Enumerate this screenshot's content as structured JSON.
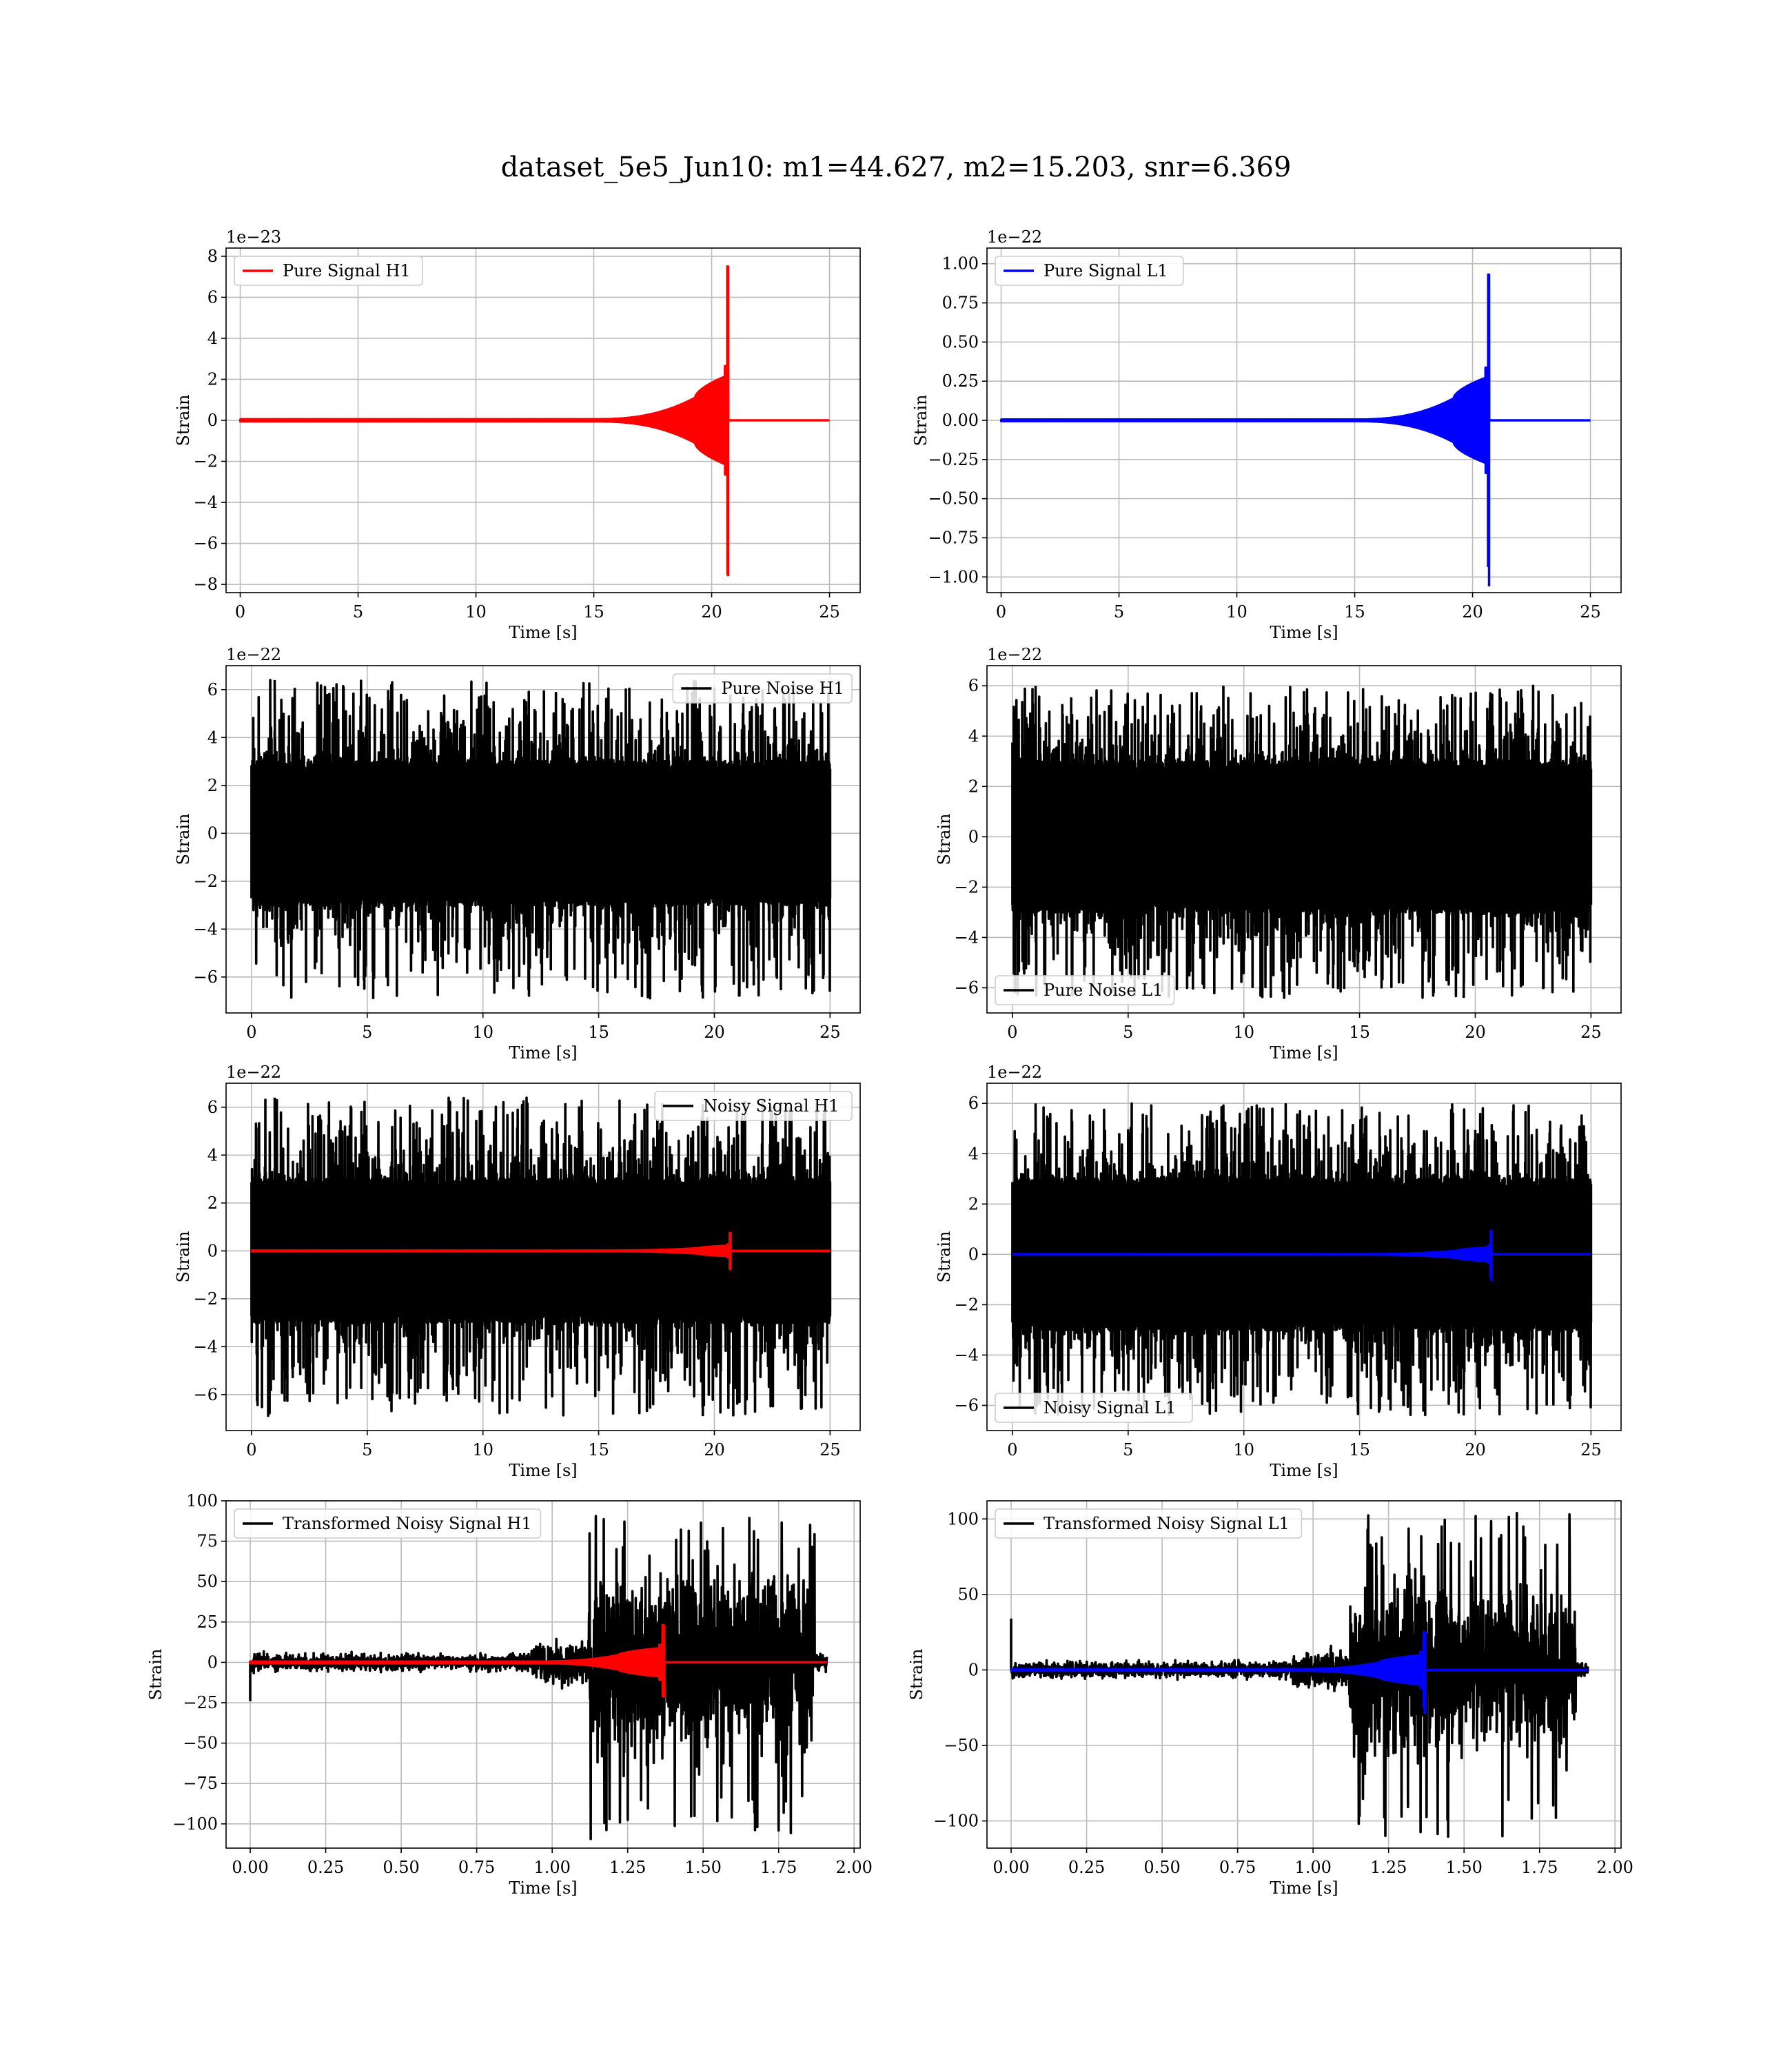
{
  "figure": {
    "title": "dataset_5e5_Jun10: m1=44.627, m2=15.203, snr=6.369"
  },
  "chart_data": [
    {
      "id": "pure-signal-h1",
      "type": "line",
      "xlabel": "Time [s]",
      "ylabel": "Strain",
      "offset_text": "1e−23",
      "xlim": [
        -0.6,
        26.3
      ],
      "ylim": [
        -8.4,
        8.4
      ],
      "x_ticks": [
        0,
        5,
        10,
        15,
        20,
        25
      ],
      "x_tick_labels": [
        "0",
        "5",
        "10",
        "15",
        "20",
        "25"
      ],
      "y_ticks": [
        -8,
        -6,
        -4,
        -2,
        0,
        2,
        4,
        6,
        8
      ],
      "y_tick_labels": [
        "−8",
        "−6",
        "−4",
        "−2",
        "0",
        "2",
        "4",
        "6",
        "8"
      ],
      "grid": true,
      "legend": "top-left",
      "series": [
        {
          "name": "Pure Signal H1",
          "color": "#ff0000",
          "kind": "chirp",
          "x_start": 0,
          "x_end": 25,
          "peak_x": 20.7,
          "peak_pos": 7.5,
          "peak_neg": -7.6,
          "onset_x": 15,
          "burst_x": 19.3,
          "burst_amp": 2.2,
          "base_amp": 0.05
        }
      ]
    },
    {
      "id": "pure-signal-l1",
      "type": "line",
      "xlabel": "Time [s]",
      "ylabel": "Strain",
      "offset_text": "1e−22",
      "xlim": [
        -0.6,
        26.3
      ],
      "ylim": [
        -1.1,
        1.1
      ],
      "x_ticks": [
        0,
        5,
        10,
        15,
        20,
        25
      ],
      "x_tick_labels": [
        "0",
        "5",
        "10",
        "15",
        "20",
        "25"
      ],
      "y_ticks": [
        -1.0,
        -0.75,
        -0.5,
        -0.25,
        0,
        0.25,
        0.5,
        0.75,
        1.0
      ],
      "y_tick_labels": [
        "−1.00",
        "−0.75",
        "−0.50",
        "−0.25",
        "0.00",
        "0.25",
        "0.50",
        "0.75",
        "1.00"
      ],
      "grid": true,
      "legend": "top-left",
      "series": [
        {
          "name": "Pure Signal L1",
          "color": "#0000ff",
          "kind": "chirp",
          "x_start": 0,
          "x_end": 25,
          "peak_x": 20.7,
          "peak_pos": 0.93,
          "peak_neg": -1.06,
          "onset_x": 15,
          "burst_x": 19.2,
          "burst_amp": 0.28,
          "base_amp": 0.005
        }
      ]
    },
    {
      "id": "pure-noise-h1",
      "type": "line",
      "xlabel": "Time [s]",
      "ylabel": "Strain",
      "offset_text": "1e−22",
      "xlim": [
        -1.1,
        26.3
      ],
      "ylim": [
        -7.5,
        7.0
      ],
      "x_ticks": [
        0,
        5,
        10,
        15,
        20,
        25
      ],
      "x_tick_labels": [
        "0",
        "5",
        "10",
        "15",
        "20",
        "25"
      ],
      "y_ticks": [
        -6,
        -4,
        -2,
        0,
        2,
        4,
        6
      ],
      "y_tick_labels": [
        "−6",
        "−4",
        "−2",
        "0",
        "2",
        "4",
        "6"
      ],
      "grid": true,
      "legend": "top-right",
      "series": [
        {
          "name": "Pure Noise H1",
          "color": "#000000",
          "kind": "noise",
          "x_start": 0,
          "x_end": 25,
          "band": 3.0,
          "max_pos": 6.4,
          "max_neg": -6.9
        }
      ]
    },
    {
      "id": "pure-noise-l1",
      "type": "line",
      "xlabel": "Time [s]",
      "ylabel": "Strain",
      "offset_text": "1e−22",
      "xlim": [
        -1.1,
        26.3
      ],
      "ylim": [
        -7.0,
        6.8
      ],
      "x_ticks": [
        0,
        5,
        10,
        15,
        20,
        25
      ],
      "x_tick_labels": [
        "0",
        "5",
        "10",
        "15",
        "20",
        "25"
      ],
      "y_ticks": [
        -6,
        -4,
        -2,
        0,
        2,
        4,
        6
      ],
      "y_tick_labels": [
        "−6",
        "−4",
        "−2",
        "0",
        "2",
        "4",
        "6"
      ],
      "grid": true,
      "legend": "bottom-left",
      "series": [
        {
          "name": "Pure Noise L1",
          "color": "#000000",
          "kind": "noise",
          "x_start": 0,
          "x_end": 25,
          "band": 3.0,
          "max_pos": 6.0,
          "max_neg": -6.4
        }
      ]
    },
    {
      "id": "noisy-signal-h1",
      "type": "line",
      "xlabel": "Time [s]",
      "ylabel": "Strain",
      "offset_text": "1e−22",
      "xlim": [
        -1.1,
        26.3
      ],
      "ylim": [
        -7.5,
        7.0
      ],
      "x_ticks": [
        0,
        5,
        10,
        15,
        20,
        25
      ],
      "x_tick_labels": [
        "0",
        "5",
        "10",
        "15",
        "20",
        "25"
      ],
      "y_ticks": [
        -6,
        -4,
        -2,
        0,
        2,
        4,
        6
      ],
      "y_tick_labels": [
        "−6",
        "−4",
        "−2",
        "0",
        "2",
        "4",
        "6"
      ],
      "grid": true,
      "legend": "top-right",
      "series": [
        {
          "name": "Noisy Signal H1",
          "color": "#000000",
          "kind": "noise",
          "x_start": 0,
          "x_end": 25,
          "band": 3.0,
          "max_pos": 6.4,
          "max_neg": -6.9
        },
        {
          "color": "#ff0000",
          "kind": "chirp",
          "x_start": 0,
          "x_end": 25,
          "peak_x": 20.7,
          "peak_pos": 0.75,
          "peak_neg": -0.76,
          "onset_x": 15,
          "burst_x": 19.3,
          "burst_amp": 0.22,
          "base_amp": 0.01
        }
      ]
    },
    {
      "id": "noisy-signal-l1",
      "type": "line",
      "xlabel": "Time [s]",
      "ylabel": "Strain",
      "offset_text": "1e−22",
      "xlim": [
        -1.1,
        26.3
      ],
      "ylim": [
        -7.0,
        6.8
      ],
      "x_ticks": [
        0,
        5,
        10,
        15,
        20,
        25
      ],
      "x_tick_labels": [
        "0",
        "5",
        "10",
        "15",
        "20",
        "25"
      ],
      "y_ticks": [
        -6,
        -4,
        -2,
        0,
        2,
        4,
        6
      ],
      "y_tick_labels": [
        "−6",
        "−4",
        "−2",
        "0",
        "2",
        "4",
        "6"
      ],
      "grid": true,
      "legend": "bottom-left",
      "series": [
        {
          "name": "Noisy Signal L1",
          "color": "#000000",
          "kind": "noise",
          "x_start": 0,
          "x_end": 25,
          "band": 3.0,
          "max_pos": 6.0,
          "max_neg": -6.4
        },
        {
          "color": "#0000ff",
          "kind": "chirp",
          "x_start": 0,
          "x_end": 25,
          "peak_x": 20.7,
          "peak_pos": 0.93,
          "peak_neg": -1.06,
          "onset_x": 15,
          "burst_x": 19.2,
          "burst_amp": 0.28,
          "base_amp": 0.005
        }
      ]
    },
    {
      "id": "transformed-noisy-signal-h1",
      "type": "line",
      "xlabel": "Time [s]",
      "ylabel": "Strain",
      "offset_text": "",
      "xlim": [
        -0.08,
        2.02
      ],
      "ylim": [
        -115,
        100
      ],
      "x_ticks": [
        0,
        0.25,
        0.5,
        0.75,
        1.0,
        1.25,
        1.5,
        1.75,
        2.0
      ],
      "x_tick_labels": [
        "0.00",
        "0.25",
        "0.50",
        "0.75",
        "1.00",
        "1.25",
        "1.50",
        "1.75",
        "2.00"
      ],
      "y_ticks": [
        -100,
        -75,
        -50,
        -25,
        0,
        25,
        50,
        75,
        100
      ],
      "y_tick_labels": [
        "−100",
        "−75",
        "−50",
        "−25",
        "0",
        "25",
        "50",
        "75",
        "100"
      ],
      "grid": true,
      "legend": "top-left",
      "series": [
        {
          "name": "Transformed Noisy Signal H1",
          "color": "#000000",
          "kind": "whitened",
          "x_start": 0,
          "x_end": 1.91,
          "low_band": 5,
          "mid_x": 0.93,
          "mid_band": 12,
          "high_x": 1.12,
          "high_band": 55,
          "high_end": 1.87,
          "max_pos": 92,
          "max_neg": -110,
          "start_spike": -24
        },
        {
          "color": "#ff0000",
          "kind": "chirp",
          "x_start": 0,
          "x_end": 1.91,
          "peak_x": 1.37,
          "peak_pos": 23,
          "peak_neg": -21,
          "onset_x": 0.95,
          "burst_x": 1.22,
          "burst_amp": 9,
          "base_amp": 0.5
        }
      ]
    },
    {
      "id": "transformed-noisy-signal-l1",
      "type": "line",
      "xlabel": "Time [s]",
      "ylabel": "Strain",
      "offset_text": "",
      "xlim": [
        -0.08,
        2.02
      ],
      "ylim": [
        -118,
        112
      ],
      "x_ticks": [
        0,
        0.25,
        0.5,
        0.75,
        1.0,
        1.25,
        1.5,
        1.75,
        2.0
      ],
      "x_tick_labels": [
        "0.00",
        "0.25",
        "0.50",
        "0.75",
        "1.00",
        "1.25",
        "1.50",
        "1.75",
        "2.00"
      ],
      "y_ticks": [
        -100,
        -50,
        0,
        50,
        100
      ],
      "y_tick_labels": [
        "−100",
        "−50",
        "0",
        "50",
        "100"
      ],
      "grid": true,
      "legend": "top-left",
      "series": [
        {
          "name": "Transformed Noisy Signal L1",
          "color": "#000000",
          "kind": "whitened",
          "x_start": 0,
          "x_end": 1.91,
          "low_band": 5,
          "mid_x": 0.93,
          "mid_band": 12,
          "high_x": 1.12,
          "high_band": 55,
          "high_end": 1.87,
          "max_pos": 104,
          "max_neg": -112,
          "start_spike": 34
        },
        {
          "color": "#0000ff",
          "kind": "chirp",
          "x_start": 0,
          "x_end": 1.91,
          "peak_x": 1.37,
          "peak_pos": 25,
          "peak_neg": -29,
          "onset_x": 0.95,
          "burst_x": 1.22,
          "burst_amp": 10,
          "base_amp": 0.5
        }
      ]
    }
  ]
}
